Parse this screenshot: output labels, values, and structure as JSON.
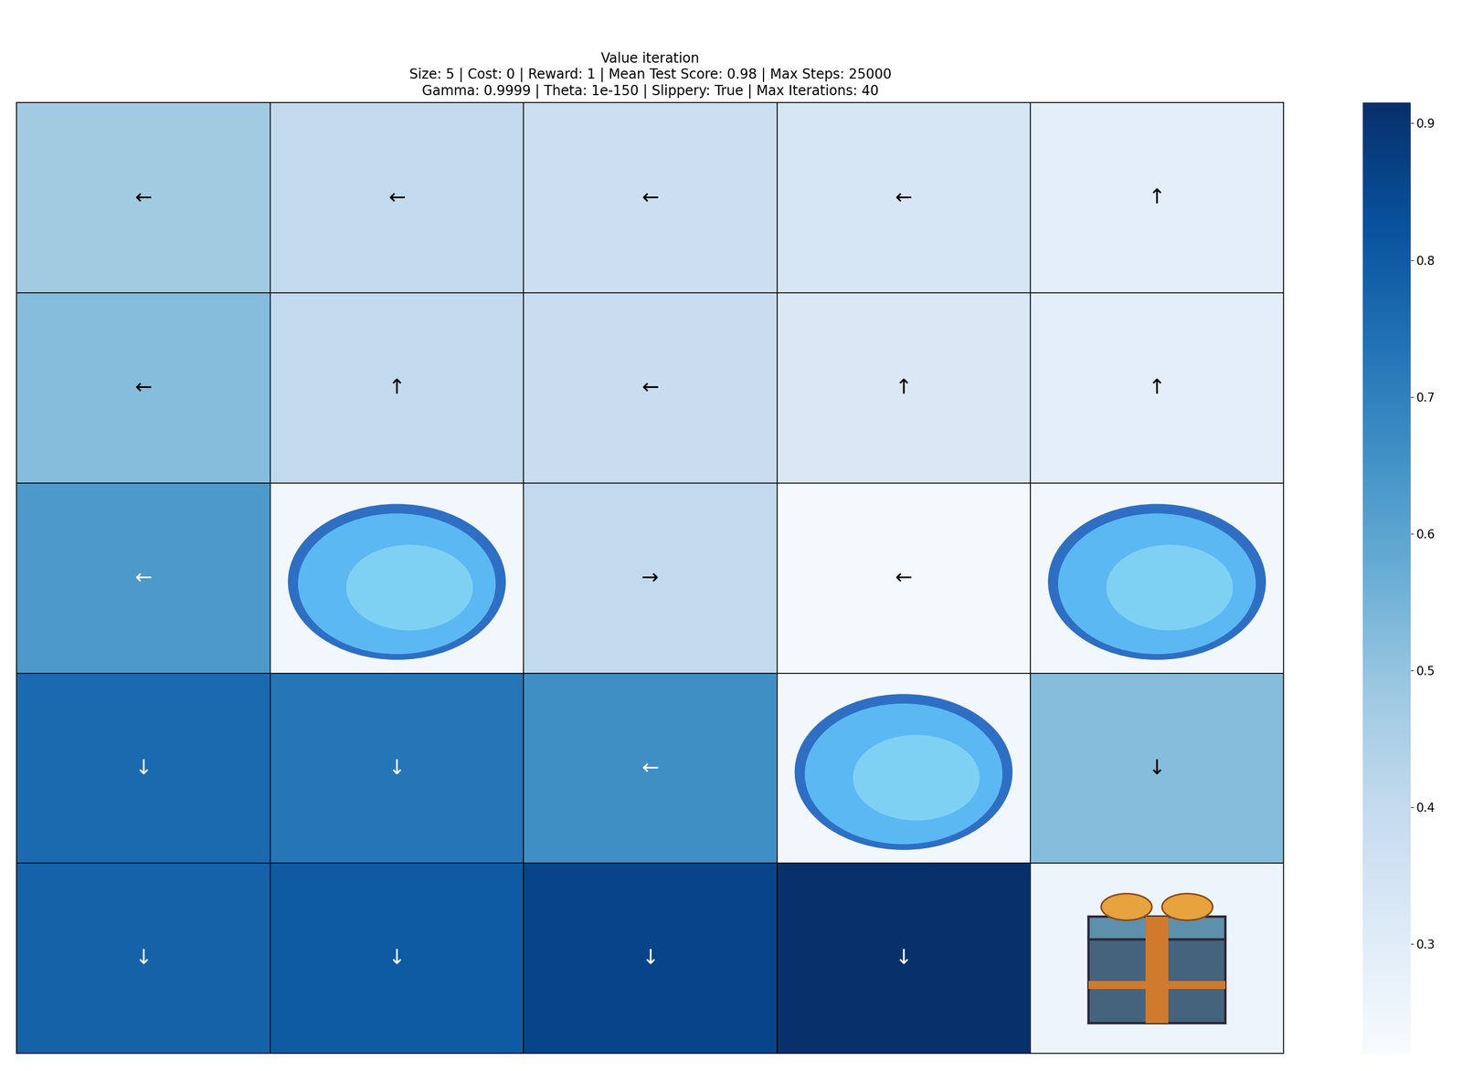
{
  "chart_data": {
    "type": "heatmap",
    "title": "Value iteration\nSize: 5 | Cost: 0 | Reward: 1 | Mean Test Score: 0.98 | Max Steps: 25000\nGamma: 0.9999 | Theta: 1e-150 | Slippery: True | Max Iterations: 40",
    "values": [
      [
        0.47,
        0.4,
        0.37,
        0.33,
        0.29
      ],
      [
        0.52,
        0.4,
        0.38,
        0.32,
        0.29
      ],
      [
        0.63,
        null,
        0.4,
        0.23,
        null
      ],
      [
        0.76,
        0.73,
        0.66,
        null,
        0.52
      ],
      [
        0.78,
        0.8,
        0.86,
        0.91,
        null
      ]
    ],
    "arrows": [
      [
        "←",
        "←",
        "←",
        "←",
        "↑"
      ],
      [
        "←",
        "↑",
        "←",
        "↑",
        "↑"
      ],
      [
        "←",
        null,
        "→",
        "←",
        null
      ],
      [
        "↓",
        "↓",
        "←",
        null,
        "↓"
      ],
      [
        "↓",
        "↓",
        "↓",
        "↓",
        null
      ]
    ],
    "holes": [
      [
        2,
        1
      ],
      [
        2,
        4
      ],
      [
        3,
        3
      ]
    ],
    "goal": [
      4,
      4
    ],
    "colorbar_range": [
      0.22,
      0.915
    ],
    "colorbar_ticks": [
      0.3,
      0.4,
      0.5,
      0.6,
      0.7,
      0.8,
      0.9
    ],
    "color": "Blues",
    "tick_labels": false
  }
}
